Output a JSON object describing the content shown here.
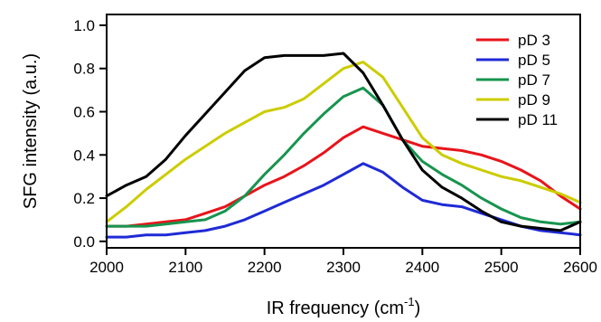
{
  "chart_data": {
    "type": "line",
    "xlabel": "IR frequency (cm",
    "xlabel_sup": "-1",
    "xlabel_close": ")",
    "ylabel": "SFG intensity (a.u.)",
    "xlim": [
      2000,
      2600
    ],
    "ylim": [
      -0.03,
      1.05
    ],
    "x_ticks": [
      2000,
      2100,
      2200,
      2300,
      2400,
      2500,
      2600
    ],
    "x_tick_labels": [
      "2000",
      "2100",
      "2200",
      "2300",
      "2400",
      "2500",
      "2600"
    ],
    "y_ticks": [
      0.0,
      0.2,
      0.4,
      0.6,
      0.8,
      1.0
    ],
    "y_tick_labels": [
      "0.0",
      "0.2",
      "0.4",
      "0.6",
      "0.8",
      "1.0"
    ],
    "grid": false,
    "legend_position": "top-right",
    "x": [
      2000,
      2025,
      2050,
      2075,
      2100,
      2125,
      2150,
      2175,
      2200,
      2225,
      2250,
      2275,
      2300,
      2325,
      2350,
      2375,
      2400,
      2425,
      2450,
      2475,
      2500,
      2525,
      2550,
      2575,
      2600
    ],
    "series": [
      {
        "name": "pD 3",
        "color": "#e8141a",
        "values": [
          0.07,
          0.07,
          0.08,
          0.09,
          0.1,
          0.13,
          0.16,
          0.21,
          0.26,
          0.3,
          0.35,
          0.41,
          0.48,
          0.53,
          0.5,
          0.47,
          0.44,
          0.43,
          0.42,
          0.4,
          0.37,
          0.33,
          0.28,
          0.21,
          0.15
        ]
      },
      {
        "name": "pD 5",
        "color": "#1f2ad6",
        "values": [
          0.02,
          0.02,
          0.03,
          0.03,
          0.04,
          0.05,
          0.07,
          0.1,
          0.14,
          0.18,
          0.22,
          0.26,
          0.31,
          0.36,
          0.32,
          0.25,
          0.19,
          0.17,
          0.16,
          0.13,
          0.1,
          0.07,
          0.05,
          0.04,
          0.03
        ]
      },
      {
        "name": "pD 7",
        "color": "#17944e",
        "values": [
          0.07,
          0.07,
          0.07,
          0.08,
          0.09,
          0.1,
          0.14,
          0.21,
          0.31,
          0.4,
          0.5,
          0.59,
          0.67,
          0.71,
          0.63,
          0.47,
          0.37,
          0.31,
          0.26,
          0.2,
          0.15,
          0.11,
          0.09,
          0.08,
          0.09
        ]
      },
      {
        "name": "pD 9",
        "color": "#cccc00",
        "values": [
          0.09,
          0.16,
          0.24,
          0.31,
          0.38,
          0.44,
          0.5,
          0.55,
          0.6,
          0.62,
          0.66,
          0.73,
          0.8,
          0.83,
          0.76,
          0.62,
          0.48,
          0.4,
          0.36,
          0.33,
          0.3,
          0.28,
          0.25,
          0.22,
          0.18
        ]
      },
      {
        "name": "pD 11",
        "color": "#000000",
        "values": [
          0.21,
          0.26,
          0.3,
          0.38,
          0.49,
          0.59,
          0.69,
          0.79,
          0.85,
          0.86,
          0.86,
          0.86,
          0.87,
          0.78,
          0.63,
          0.47,
          0.33,
          0.25,
          0.2,
          0.14,
          0.09,
          0.07,
          0.06,
          0.05,
          0.09
        ]
      }
    ]
  }
}
